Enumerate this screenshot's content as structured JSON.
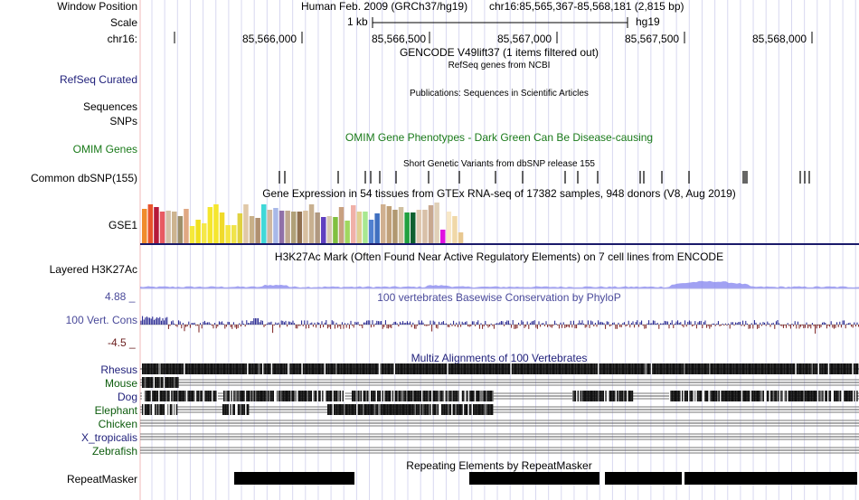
{
  "header": {
    "window_position_label": "Window Position",
    "scale_label": "Scale",
    "chrom_label": "chr16:",
    "assembly": "Human Feb. 2009 (GRCh37/hg19)",
    "position": "chr16:85,565,367-85,568,181 (2,815 bp)",
    "scale_bar_text": "1 kb",
    "scale_db": "hg19",
    "ruler_ticks": [
      "85,566,000",
      "85,566,500",
      "85,567,000",
      "85,567,500",
      "85,568,000"
    ]
  },
  "tracks": {
    "gencode": {
      "title": "GENCODE V49lift37 (1 items filtered out)"
    },
    "refseq": {
      "label": "RefSeq Curated",
      "title": "RefSeq genes from NCBI"
    },
    "publications": {
      "label": "Sequences",
      "title": "Publications: Sequences in Scientific Articles"
    },
    "snps": {
      "label": "SNPs"
    },
    "omim": {
      "label": "OMIM Genes",
      "title": "OMIM Gene Phenotypes - Dark Green Can Be Disease-causing"
    },
    "dbsnp": {
      "label": "Common dbSNP(155)",
      "title": "Short Genetic Variants from dbSNP release 155"
    },
    "gtex": {
      "label": "GSE1",
      "title": "Gene Expression in 54 tissues from GTEx RNA-seq of 17382 samples, 948 donors (V8, Aug 2019)"
    },
    "h3k27ac": {
      "label": "Layered H3K27Ac",
      "title": "H3K27Ac Mark (Often Found Near Active Regulatory Elements) on 7 cell lines from ENCODE"
    },
    "phylop": {
      "label": "100 Vert. Cons",
      "title": "100 vertebrates Basewise Conservation by PhyloP",
      "max_label": "4.88 _",
      "min_label": "-4.5 _"
    },
    "multiz": {
      "title": "Multiz Alignments of 100 Vertebrates",
      "species": [
        "Rhesus",
        "Mouse",
        "Dog",
        "Elephant",
        "Chicken",
        "X_tropicalis",
        "Zebrafish"
      ]
    },
    "repeatmasker": {
      "label": "RepeatMasker",
      "title": "Repeating Elements by RepeatMasker"
    }
  },
  "colors": {
    "track_label_navy": "#1f1f7a",
    "omim_green": "#1a7a1a",
    "species_green": "#0d5c0d",
    "grid_line": "#d8d8f0",
    "left_border": "#f2b8b8"
  },
  "chart_data": {
    "type": "bar",
    "title": "Gene Expression in 54 tissues from GTEx RNA-seq of 17382 samples, 948 donors (V8, Aug 2019)",
    "values": [
      38,
      43,
      40,
      35,
      36,
      35,
      30,
      38,
      19,
      26,
      22,
      40,
      43,
      34,
      20,
      20,
      33,
      43,
      30,
      28,
      43,
      37,
      39,
      36,
      36,
      35,
      35,
      36,
      43,
      34,
      29,
      30,
      29,
      40,
      25,
      42,
      35,
      35,
      26,
      33,
      43,
      41,
      37,
      40,
      34,
      34,
      37,
      37,
      42,
      45,
      15,
      35,
      30,
      12
    ],
    "colors": [
      "#f08c2c",
      "#e8542c",
      "#b5193a",
      "#e85a62",
      "#d4c0a8",
      "#cdb490",
      "#9d8f6a",
      "#e0a883",
      "#f5e93a",
      "#f0e020",
      "#f5e84a",
      "#f5e62d",
      "#f5e62d",
      "#f0da2a",
      "#f5e642",
      "#f0e44a",
      "#e0d240",
      "#e0c8a8",
      "#c8b088",
      "#b09070",
      "#40d8d8",
      "#d0b8a0",
      "#a8b8e8",
      "#9070a8",
      "#c0a890",
      "#b0a078",
      "#907050",
      "#d8c0a0",
      "#c8b090",
      "#b09880",
      "#6040c0",
      "#d8c8b0",
      "#80c040",
      "#c8a080",
      "#a0d860",
      "#f0b0a8",
      "#e0d090",
      "#a8e890",
      "#5080d0",
      "#4070c0",
      "#d0b090",
      "#c0a078",
      "#b09870",
      "#d0c0a0",
      "#20a040",
      "#106030",
      "#e0c8b0",
      "#d8c0a8",
      "#c8a890",
      "#e0d0b8",
      "#e010e0",
      "#f8e8c8",
      "#f0d8a8",
      "#e8c890"
    ]
  }
}
